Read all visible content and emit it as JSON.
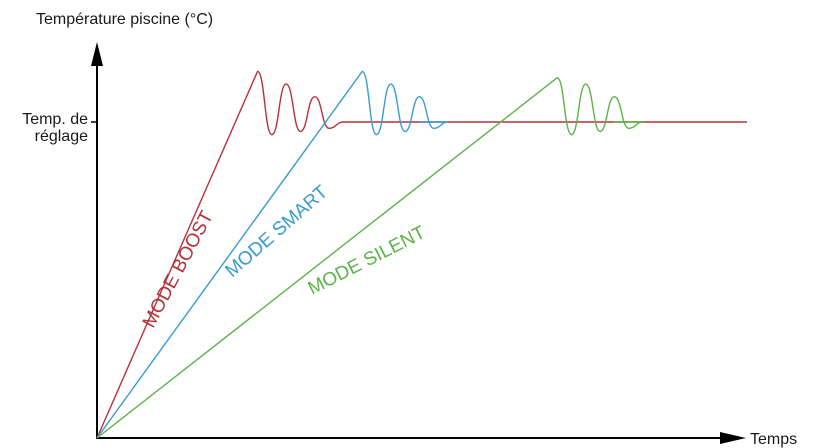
{
  "colors": {
    "boost": "#b5323a",
    "smart": "#3a9bcf",
    "silent": "#5cb34a",
    "axis": "#000000",
    "background": "#ffffff"
  },
  "chart_data": {
    "type": "line",
    "ylabel": "Température piscine (°C)",
    "xlabel": "Temps",
    "y_tick_label_line1": "Temp. de",
    "y_tick_label_line2": "réglage",
    "setpoint": 1,
    "xlim": [
      0,
      100
    ],
    "ylim": [
      0,
      1.4
    ],
    "grid": false,
    "axis_values_printed": false,
    "series": [
      {
        "key": "boost",
        "name": "MODE BOOST",
        "reach_x": 24.7,
        "plateau_to_x": 100,
        "overshoot": [
          0.16,
          -0.04,
          0.12,
          -0.03,
          0.08,
          -0.02,
          0
        ]
      },
      {
        "key": "smart",
        "name": "MODE SMART",
        "reach_x": 40.8,
        "plateau_to_x": 49.5,
        "overshoot": [
          0.16,
          -0.04,
          0.12,
          -0.03,
          0.08,
          -0.02,
          0
        ]
      },
      {
        "key": "silent",
        "name": "MODE SILENT",
        "reach_x": 70.8,
        "plateau_to_x": 79.5,
        "overshoot": [
          0.14,
          -0.04,
          0.12,
          -0.03,
          0.08,
          -0.02,
          0
        ]
      }
    ]
  }
}
